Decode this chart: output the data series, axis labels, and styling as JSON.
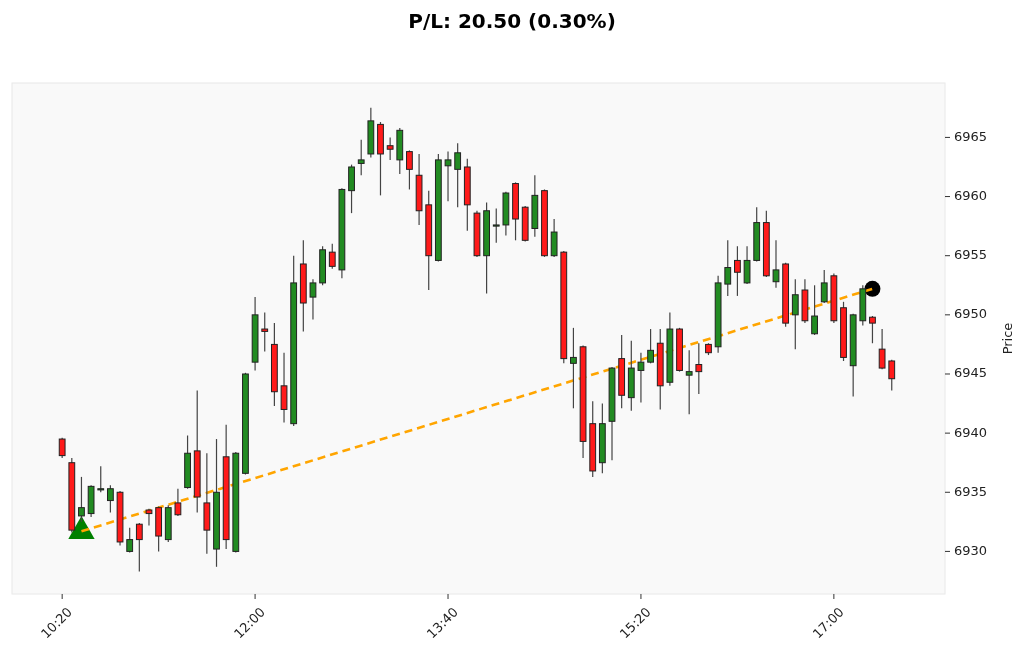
{
  "chart_data": {
    "type": "candlestick",
    "title": "P/L: 20.50 (0.30%)",
    "ylabel": "Price",
    "xlim": [
      9.9,
      17.96
    ],
    "xticks": [
      {
        "value": 10.3333,
        "label": "10:20"
      },
      {
        "value": 12,
        "label": "12:00"
      },
      {
        "value": 13.6667,
        "label": "13:40"
      },
      {
        "value": 15.3333,
        "label": "15:20"
      },
      {
        "value": 17,
        "label": "17:00"
      }
    ],
    "ylim": [
      6926.4,
      6969.6
    ],
    "yticks": [
      6930,
      6935,
      6940,
      6945,
      6950,
      6955,
      6960,
      6965
    ],
    "grid": false,
    "series": [
      {
        "x": [
          10.3333,
          10.4167,
          10.5,
          10.5833,
          10.6667,
          10.75,
          10.8333,
          10.9167,
          11,
          11.0833,
          11.1667,
          11.25,
          11.3333,
          11.4167,
          11.5,
          11.5833,
          11.6667,
          11.75,
          11.8333,
          11.9167,
          12,
          12.0833,
          12.1667,
          12.25,
          12.3333,
          12.4167,
          12.5,
          12.5833,
          12.6667,
          12.75,
          12.8333,
          12.9167,
          13,
          13.0833,
          13.1667,
          13.25,
          13.3333,
          13.4167,
          13.5,
          13.5833,
          13.6667,
          13.75,
          13.8333,
          13.9167,
          14,
          14.0833,
          14.1667,
          14.25,
          14.3333,
          14.4167,
          14.5,
          14.5833,
          14.6667,
          14.75,
          14.8333,
          14.9167,
          15,
          15.0833,
          15.1667,
          15.25,
          15.3333,
          15.4167,
          15.5,
          15.5833,
          15.6667,
          15.75,
          15.8333,
          15.9167,
          16,
          16.0833,
          16.1667,
          16.25,
          16.3333,
          16.4167,
          16.5,
          16.5833,
          16.6667,
          16.75,
          16.8333,
          16.9167,
          17,
          17.0833,
          17.1667,
          17.25,
          17.3333,
          17.4167,
          17.5
        ],
        "ohlc": [
          [
            6939.5,
            6939.6,
            6937.9,
            6938.1
          ],
          [
            6937.5,
            6937.9,
            6931.6,
            6931.8
          ],
          [
            6933.0,
            6936.3,
            6932.5,
            6933.7
          ],
          [
            6933.2,
            6935.6,
            6932.9,
            6935.5
          ],
          [
            6935.2,
            6937.2,
            6935.0,
            6935.3
          ],
          [
            6934.3,
            6935.6,
            6933.3,
            6935.3
          ],
          [
            6935.0,
            6935.1,
            6930.5,
            6930.8
          ],
          [
            6930.0,
            6932.0,
            6929.9,
            6931.0
          ],
          [
            6932.3,
            6932.4,
            6928.3,
            6931.0
          ],
          [
            6933.5,
            6933.6,
            6932.2,
            6933.2
          ],
          [
            6933.7,
            6933.8,
            6930.0,
            6931.3
          ],
          [
            6931.0,
            6933.9,
            6930.8,
            6933.7
          ],
          [
            6934.1,
            6935.3,
            6933.0,
            6933.1
          ],
          [
            6935.4,
            6939.8,
            6935.3,
            6938.3
          ],
          [
            6938.5,
            6943.6,
            6933.3,
            6934.6
          ],
          [
            6934.1,
            6938.3,
            6929.8,
            6931.8
          ],
          [
            6930.2,
            6939.5,
            6928.7,
            6935.0
          ],
          [
            6938.0,
            6940.7,
            6930.2,
            6931.0
          ],
          [
            6930.0,
            6938.4,
            6929.9,
            6938.3
          ],
          [
            6936.6,
            6945.1,
            6936.5,
            6945.0
          ],
          [
            6946.0,
            6951.5,
            6945.3,
            6950.0
          ],
          [
            6948.8,
            6950.2,
            6946.9,
            6948.6
          ],
          [
            6947.5,
            6949.3,
            6942.3,
            6943.5
          ],
          [
            6944.0,
            6946.8,
            6940.9,
            6942.0
          ],
          [
            6940.8,
            6955.0,
            6940.6,
            6952.7
          ],
          [
            6954.3,
            6956.3,
            6948.6,
            6951.0
          ],
          [
            6951.5,
            6953.0,
            6949.6,
            6952.7
          ],
          [
            6952.7,
            6955.8,
            6952.5,
            6955.5
          ],
          [
            6955.3,
            6956.0,
            6953.9,
            6954.1
          ],
          [
            6953.8,
            6960.7,
            6953.1,
            6960.6
          ],
          [
            6960.5,
            6962.7,
            6958.6,
            6962.5
          ],
          [
            6962.8,
            6964.8,
            6961.8,
            6963.1
          ],
          [
            6963.6,
            6967.5,
            6963.3,
            6966.4
          ],
          [
            6966.1,
            6966.3,
            6960.1,
            6963.6
          ],
          [
            6964.3,
            6965.0,
            6963.1,
            6964.0
          ],
          [
            6963.1,
            6965.8,
            6961.9,
            6965.6
          ],
          [
            6963.8,
            6963.9,
            6960.6,
            6962.3
          ],
          [
            6961.8,
            6963.6,
            6957.6,
            6958.8
          ],
          [
            6959.3,
            6960.5,
            6952.1,
            6955.0
          ],
          [
            6954.6,
            6963.6,
            6954.5,
            6963.1
          ],
          [
            6962.6,
            6963.8,
            6959.6,
            6963.1
          ],
          [
            6962.3,
            6964.5,
            6959.1,
            6963.7
          ],
          [
            6962.5,
            6963.2,
            6957.1,
            6959.3
          ],
          [
            6958.6,
            6958.8,
            6954.9,
            6955.0
          ],
          [
            6955.0,
            6959.5,
            6951.8,
            6958.8
          ],
          [
            6957.5,
            6959.0,
            6956.1,
            6957.6
          ],
          [
            6957.6,
            6960.4,
            6956.7,
            6960.3
          ],
          [
            6961.1,
            6961.2,
            6956.3,
            6958.1
          ],
          [
            6959.1,
            6959.2,
            6956.2,
            6956.3
          ],
          [
            6957.3,
            6961.8,
            6956.6,
            6960.1
          ],
          [
            6960.5,
            6960.6,
            6954.9,
            6955.0
          ],
          [
            6955.0,
            6958.1,
            6954.9,
            6957.0
          ],
          [
            6955.3,
            6955.4,
            6945.9,
            6946.3
          ],
          [
            6945.9,
            6948.9,
            6942.1,
            6946.4
          ],
          [
            6947.3,
            6947.4,
            6937.9,
            6939.3
          ],
          [
            6940.8,
            6942.7,
            6936.3,
            6936.8
          ],
          [
            6937.5,
            6942.5,
            6936.6,
            6940.8
          ],
          [
            6941.0,
            6945.6,
            6937.7,
            6945.5
          ],
          [
            6946.3,
            6948.3,
            6942.1,
            6943.2
          ],
          [
            6943.0,
            6947.8,
            6941.9,
            6945.5
          ],
          [
            6945.3,
            6946.8,
            6942.6,
            6946.0
          ],
          [
            6946.0,
            6948.8,
            6945.9,
            6947.0
          ],
          [
            6947.6,
            6948.8,
            6942.0,
            6944.0
          ],
          [
            6944.3,
            6950.2,
            6944.0,
            6948.8
          ],
          [
            6948.8,
            6948.9,
            6945.2,
            6945.3
          ],
          [
            6944.9,
            6947.0,
            6941.6,
            6945.2
          ],
          [
            6945.8,
            6947.6,
            6943.3,
            6945.2
          ],
          [
            6947.5,
            6947.6,
            6946.6,
            6946.8
          ],
          [
            6947.3,
            6953.3,
            6946.8,
            6952.7
          ],
          [
            6952.6,
            6956.3,
            6951.6,
            6954.0
          ],
          [
            6954.6,
            6955.8,
            6951.6,
            6953.6
          ],
          [
            6952.7,
            6955.8,
            6952.6,
            6954.6
          ],
          [
            6954.6,
            6959.1,
            6954.5,
            6957.8
          ],
          [
            6957.8,
            6958.8,
            6953.2,
            6953.3
          ],
          [
            6952.8,
            6956.3,
            6952.3,
            6953.8
          ],
          [
            6954.3,
            6954.4,
            6949.0,
            6949.3
          ],
          [
            6950.0,
            6953.0,
            6947.1,
            6951.7
          ],
          [
            6952.1,
            6953.0,
            6949.3,
            6949.5
          ],
          [
            6948.4,
            6952.5,
            6948.3,
            6949.9
          ],
          [
            6951.1,
            6953.8,
            6951.0,
            6952.7
          ],
          [
            6953.3,
            6953.5,
            6949.3,
            6949.5
          ],
          [
            6950.6,
            6951.1,
            6946.1,
            6946.4
          ],
          [
            6945.7,
            6950.1,
            6943.1,
            6950.0
          ],
          [
            6949.5,
            6952.5,
            6949.1,
            6952.2
          ],
          [
            6949.8,
            6949.9,
            6947.6,
            6949.3
          ],
          [
            6947.1,
            6948.8,
            6945.4,
            6945.5
          ],
          [
            6946.1,
            6946.2,
            6943.6,
            6944.6
          ]
        ],
        "colors": [
          "#ff1a1a",
          "#ff1a1a",
          "#228b22",
          "#228b22",
          "#228b22",
          "#228b22",
          "#ff1a1a",
          "#228b22",
          "#ff1a1a",
          "#ff1a1a",
          "#ff1a1a",
          "#228b22",
          "#ff1a1a",
          "#228b22",
          "#ff1a1a",
          "#ff1a1a",
          "#228b22",
          "#ff1a1a",
          "#228b22",
          "#228b22",
          "#228b22",
          "#ff1a1a",
          "#ff1a1a",
          "#ff1a1a",
          "#228b22",
          "#ff1a1a",
          "#228b22",
          "#228b22",
          "#ff1a1a",
          "#228b22",
          "#228b22",
          "#228b22",
          "#228b22",
          "#ff1a1a",
          "#ff1a1a",
          "#228b22",
          "#ff1a1a",
          "#ff1a1a",
          "#ff1a1a",
          "#228b22",
          "#228b22",
          "#228b22",
          "#ff1a1a",
          "#ff1a1a",
          "#228b22",
          "#228b22",
          "#228b22",
          "#ff1a1a",
          "#ff1a1a",
          "#228b22",
          "#ff1a1a",
          "#228b22",
          "#ff1a1a",
          "#228b22",
          "#ff1a1a",
          "#ff1a1a",
          "#228b22",
          "#228b22",
          "#ff1a1a",
          "#228b22",
          "#228b22",
          "#228b22",
          "#ff1a1a",
          "#228b22",
          "#ff1a1a",
          "#228b22",
          "#ff1a1a",
          "#ff1a1a",
          "#228b22",
          "#228b22",
          "#ff1a1a",
          "#228b22",
          "#228b22",
          "#ff1a1a",
          "#228b22",
          "#ff1a1a",
          "#228b22",
          "#ff1a1a",
          "#228b22",
          "#228b22",
          "#ff1a1a",
          "#ff1a1a",
          "#228b22",
          "#228b22",
          "#ff1a1a",
          "#ff1a1a",
          "#ff1a1a"
        ]
      },
      {
        "type": "line",
        "x": [
          10.5,
          17.3333
        ],
        "values": [
          6931.7,
          6952.2
        ],
        "color": "#ffa500",
        "line_style": "dashed"
      },
      {
        "type": "scatter",
        "x": [
          10.5
        ],
        "values": [
          6931.7
        ],
        "color": "#008000",
        "marker": "triangle"
      },
      {
        "type": "scatter",
        "x": [
          17.3333
        ],
        "values": [
          6952.2
        ],
        "color": "#000000",
        "marker": "circle"
      }
    ]
  }
}
